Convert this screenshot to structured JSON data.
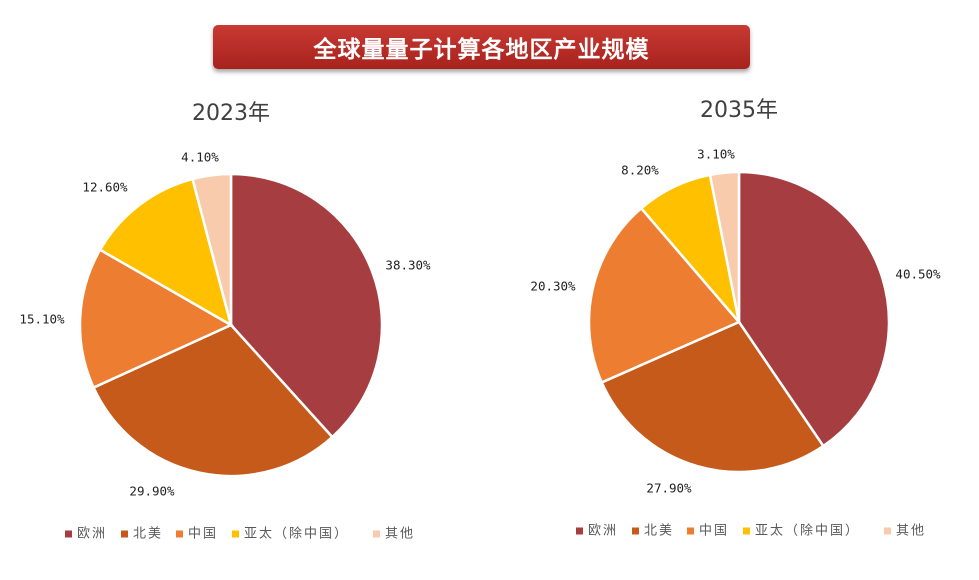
{
  "header": {
    "title": "全球量量子计算各地区产业规模"
  },
  "legend": [
    "欧洲",
    "北美",
    "中国",
    "亚太（除中国）",
    "其他"
  ],
  "colors": [
    "#a63d40",
    "#c55a1b",
    "#ed7d31",
    "#ffc000",
    "#f8cbad"
  ],
  "chart_data": [
    {
      "type": "pie",
      "title": "2023年",
      "categories": [
        "欧洲",
        "北美",
        "中国",
        "亚太（除中国）",
        "其他"
      ],
      "values": [
        38.3,
        29.9,
        15.1,
        12.6,
        4.1
      ],
      "labels": [
        "38.30%",
        "29.90%",
        "15.10%",
        "12.60%",
        "4.10%"
      ],
      "legend": "bottom"
    },
    {
      "type": "pie",
      "title": "2035年",
      "categories": [
        "欧洲",
        "北美",
        "中国",
        "亚太（除中国）",
        "其他"
      ],
      "values": [
        40.5,
        27.9,
        20.3,
        8.2,
        3.1
      ],
      "labels": [
        "40.50%",
        "27.90%",
        "20.30%",
        "8.20%",
        "3.10%"
      ],
      "legend": "bottom"
    }
  ]
}
